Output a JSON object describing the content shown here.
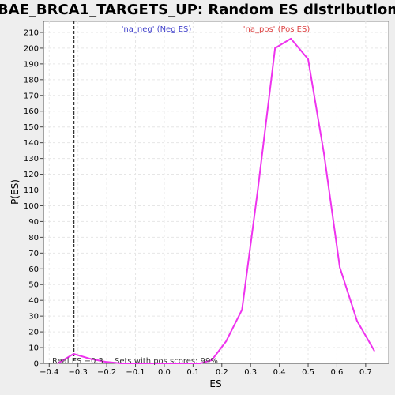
{
  "chart_data": {
    "type": "line",
    "title": "BAE_BRCA1_TARGETS_UP: Random ES distribution",
    "xlabel": "ES",
    "ylabel": "P(ES)",
    "xlim": [
      -0.42,
      0.78
    ],
    "ylim": [
      0,
      217
    ],
    "xticks": [
      -0.4,
      -0.3,
      -0.2,
      -0.1,
      0.0,
      0.1,
      0.2,
      0.3,
      0.4,
      0.5,
      0.6,
      0.7
    ],
    "xtick_labels": [
      "−0.4",
      "−0.3",
      "−0.2",
      "−0.1",
      "0.0",
      "0.1",
      "0.2",
      "0.3",
      "0.4",
      "0.5",
      "0.6",
      "0.7"
    ],
    "yticks": [
      0,
      10,
      20,
      30,
      40,
      50,
      60,
      70,
      80,
      90,
      100,
      110,
      120,
      130,
      140,
      150,
      160,
      170,
      180,
      190,
      200,
      210
    ],
    "grid": true,
    "series": [
      {
        "color": "#ee33ee",
        "x": [
          -0.37,
          -0.315,
          -0.26,
          -0.205,
          -0.15,
          -0.095,
          -0.04,
          0.015,
          0.07,
          0.125,
          0.165,
          0.215,
          0.27,
          0.325,
          0.385,
          0.44,
          0.5,
          0.555,
          0.61,
          0.67,
          0.73
        ],
        "y": [
          0,
          6,
          3,
          1,
          0,
          0,
          0,
          0,
          0,
          0,
          2,
          14,
          34,
          110,
          200,
          206,
          193,
          133,
          61,
          27,
          8
        ]
      }
    ],
    "vline": {
      "x": -0.315,
      "color": "#333333"
    },
    "annotations": {
      "neg": {
        "text": "'na_neg' (Neg ES)",
        "color": "#4444cc"
      },
      "pos": {
        "text": "'na_pos' (Pos ES)",
        "color": "#dd4444"
      },
      "real_es": {
        "text": "Real ES −0.3",
        "color": "#333333"
      },
      "pos_scores": {
        "text": "Sets with pos scores: 99%",
        "color": "#333333"
      }
    }
  }
}
